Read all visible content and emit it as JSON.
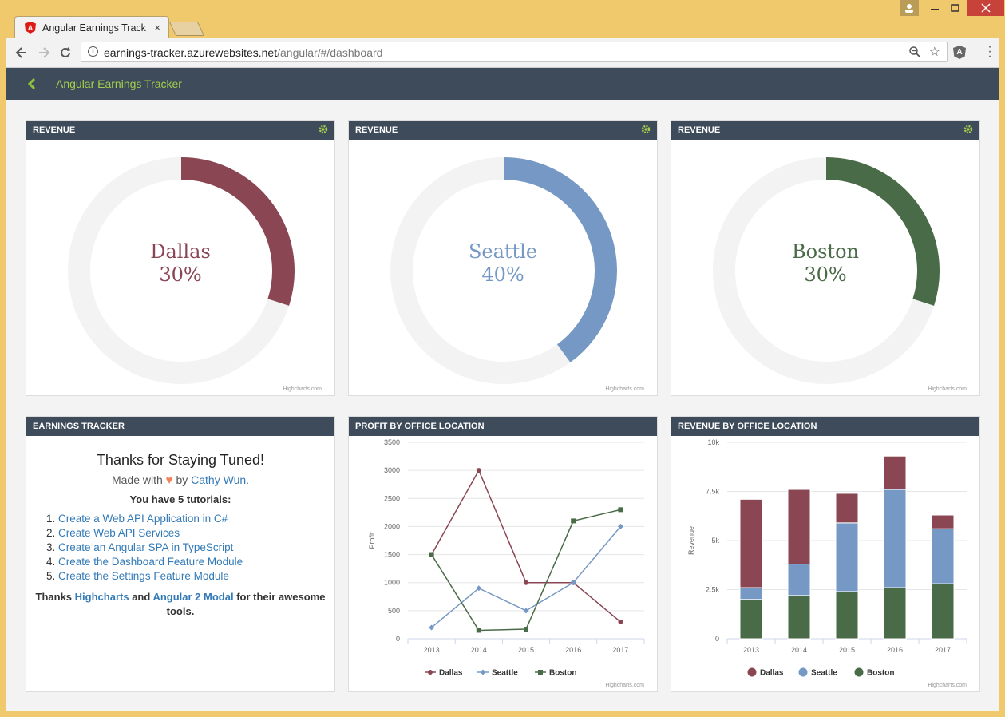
{
  "browser": {
    "tab_title": "Angular Earnings Tracker",
    "tab_close": "×",
    "url_host": "earnings-tracker.azurewebsites.net",
    "url_path": "/angular/#/dashboard",
    "extension_label": "A"
  },
  "app": {
    "title": "Angular Earnings Tracker"
  },
  "cards": {
    "revenue_title": "REVENUE",
    "earnings_title": "EARNINGS TRACKER",
    "profit_title": "PROFIT BY OFFICE LOCATION",
    "revenue_loc_title": "REVENUE BY OFFICE LOCATION",
    "credit": "Highcharts.com"
  },
  "donuts": [
    {
      "city": "Dallas",
      "percent": "30%",
      "value": 30,
      "color": "#8a4653"
    },
    {
      "city": "Seattle",
      "percent": "40%",
      "value": 40,
      "color": "#7598c4"
    },
    {
      "city": "Boston",
      "percent": "30%",
      "value": 30,
      "color": "#4a6b47"
    }
  ],
  "tracker": {
    "heading": "Thanks for Staying Tuned!",
    "made_with": "Made with",
    "by": "by",
    "author": "Cathy Wun.",
    "count": "You have 5 tutorials:",
    "tutorials": [
      "Create a Web API Application in C#",
      "Create Web API Services",
      "Create an Angular SPA in TypeScript",
      "Create the Dashboard Feature Module",
      "Create the Settings Feature Module"
    ],
    "thanks_1": "Thanks",
    "thanks_link1": "Highcharts",
    "thanks_2": "and",
    "thanks_link2": "Angular 2 Modal",
    "thanks_3": "for their awesome tools."
  },
  "colors": {
    "dallas": "#8a4653",
    "seattle": "#7598c4",
    "boston": "#4a6b47",
    "header": "#3e4b5a",
    "accent": "#a4cf4e"
  },
  "chart_data": [
    {
      "type": "line",
      "title": "PROFIT BY OFFICE LOCATION",
      "ylabel": "Profit",
      "categories": [
        "2013",
        "2014",
        "2015",
        "2016",
        "2017"
      ],
      "ylim": [
        0,
        3500
      ],
      "yticks": [
        "0",
        "500",
        "1000",
        "1500",
        "2000",
        "2500",
        "3000",
        "3500"
      ],
      "series": [
        {
          "name": "Dallas",
          "values": [
            1500,
            3000,
            1000,
            1000,
            300
          ]
        },
        {
          "name": "Seattle",
          "values": [
            200,
            900,
            500,
            1000,
            2000
          ]
        },
        {
          "name": "Boston",
          "values": [
            1500,
            150,
            170,
            2100,
            2300
          ]
        }
      ],
      "legend": "bottom"
    },
    {
      "type": "bar",
      "stacked": true,
      "title": "REVENUE BY OFFICE LOCATION",
      "ylabel": "Revenue",
      "categories": [
        "2013",
        "2014",
        "2015",
        "2016",
        "2017"
      ],
      "ylim": [
        0,
        10000
      ],
      "yticks": [
        "0",
        "2.5k",
        "5k",
        "7.5k",
        "10k"
      ],
      "series": [
        {
          "name": "Dallas",
          "values": [
            4500,
            3800,
            1500,
            1700,
            700
          ]
        },
        {
          "name": "Seattle",
          "values": [
            600,
            1600,
            3500,
            5000,
            2800
          ]
        },
        {
          "name": "Boston",
          "values": [
            2000,
            2200,
            2400,
            2600,
            2800
          ]
        }
      ],
      "legend": "bottom"
    }
  ]
}
